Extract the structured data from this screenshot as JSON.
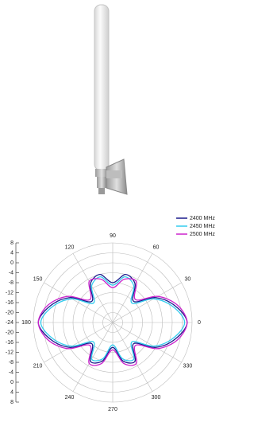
{
  "chart_data": {
    "type": "polar",
    "legend": "top-right",
    "rlim": [
      -24,
      8
    ],
    "rticks": [
      8,
      4,
      0,
      -4,
      -8,
      -12,
      -16,
      -20,
      -24
    ],
    "angle_ticks": [
      0,
      30,
      60,
      90,
      120,
      150,
      180,
      210,
      240,
      270,
      300,
      330
    ],
    "angles": [
      0,
      15,
      30,
      45,
      60,
      75,
      90,
      105,
      120,
      135,
      150,
      165,
      180,
      195,
      210,
      225,
      240,
      255,
      270,
      285,
      300,
      315,
      330,
      345
    ],
    "series": [
      {
        "name": "2400 MHz",
        "color": "#1a1a8c",
        "values": [
          6,
          2,
          -4,
          -12,
          -6,
          -4,
          -8,
          -4,
          -6,
          -12,
          -4,
          2,
          6,
          2,
          -4,
          -12,
          -6,
          -8,
          -14,
          -8,
          -6,
          -12,
          -4,
          2
        ]
      },
      {
        "name": "2450 MHz",
        "color": "#33ccee",
        "values": [
          5,
          1,
          -5,
          -13,
          -7,
          -5,
          -9,
          -5,
          -7,
          -13,
          -5,
          1,
          5,
          1,
          -5,
          -13,
          -7,
          -9,
          -15,
          -9,
          -7,
          -13,
          -5,
          1
        ]
      },
      {
        "name": "2500 MHz",
        "color": "#cc22cc",
        "values": [
          6,
          3,
          -3,
          -11,
          -5,
          -6,
          -10,
          -6,
          -5,
          -11,
          -3,
          3,
          6,
          3,
          -3,
          -11,
          -5,
          -7,
          -13,
          -7,
          -5,
          -11,
          -3,
          3
        ]
      }
    ]
  }
}
